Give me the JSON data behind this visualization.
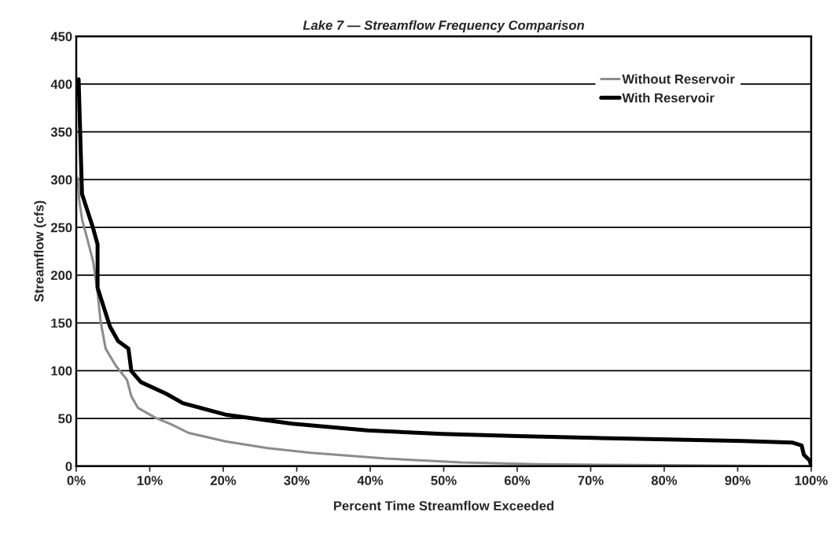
{
  "chart_data": {
    "type": "line",
    "title": "Lake 7 — Streamflow Frequency Comparison",
    "xlabel": "Percent Time Streamflow Exceeded",
    "ylabel": "Streamflow (cfs)",
    "series": [
      {
        "name": "Without Reservoir",
        "color": "#8c8c8c",
        "x": [
          0.2,
          0.4,
          0.8,
          1.5,
          2.3,
          2.9,
          3.3,
          4.0,
          5.4,
          6.9,
          7.5,
          8.4,
          10.7,
          13,
          15.3,
          20.3,
          26,
          31.9,
          42.1,
          52.4,
          62.7,
          80,
          100
        ],
        "values": [
          302,
          279,
          258,
          238,
          214,
          182,
          152,
          123,
          105,
          90.5,
          73,
          61,
          51,
          43.6,
          34.8,
          26,
          19,
          14,
          8,
          4,
          2,
          1,
          0
        ]
      },
      {
        "name": "With Reservoir",
        "color": "#000000",
        "x": [
          0.32,
          0.78,
          1.54,
          2.3,
          2.9,
          2.9,
          3.84,
          4.6,
          5.7,
          7.1,
          7.5,
          8.8,
          12.2,
          14.5,
          20.3,
          26,
          29.4,
          39.6,
          49.8,
          60.1,
          70.3,
          80.5,
          90.8,
          97.4,
          98.7,
          99,
          99.8,
          100
        ],
        "values": [
          405,
          285,
          267,
          249,
          232,
          187,
          164,
          146,
          131,
          123,
          99.5,
          88,
          76,
          66,
          54,
          48,
          44.5,
          37.4,
          33.7,
          31.6,
          29.6,
          28,
          26.3,
          24.8,
          21.7,
          12,
          6,
          0
        ]
      }
    ],
    "xlim": [
      0,
      100
    ],
    "xticks": [
      {
        "value": 0,
        "label": "0%"
      },
      {
        "value": 10,
        "label": "10%"
      },
      {
        "value": 20,
        "label": "20%"
      },
      {
        "value": 30,
        "label": "30%"
      },
      {
        "value": 40,
        "label": "40%"
      },
      {
        "value": 50,
        "label": "50%"
      },
      {
        "value": 60,
        "label": "60%"
      },
      {
        "value": 70,
        "label": "70%"
      },
      {
        "value": 80,
        "label": "80%"
      },
      {
        "value": 90,
        "label": "90%"
      },
      {
        "value": 100,
        "label": "100%"
      }
    ],
    "ylim": [
      0,
      450
    ],
    "yticks": [
      0,
      50,
      100,
      150,
      200,
      250,
      300,
      350,
      400,
      450
    ],
    "grid": "y",
    "legend": "top right",
    "marker": "none",
    "line_style": "solid"
  }
}
